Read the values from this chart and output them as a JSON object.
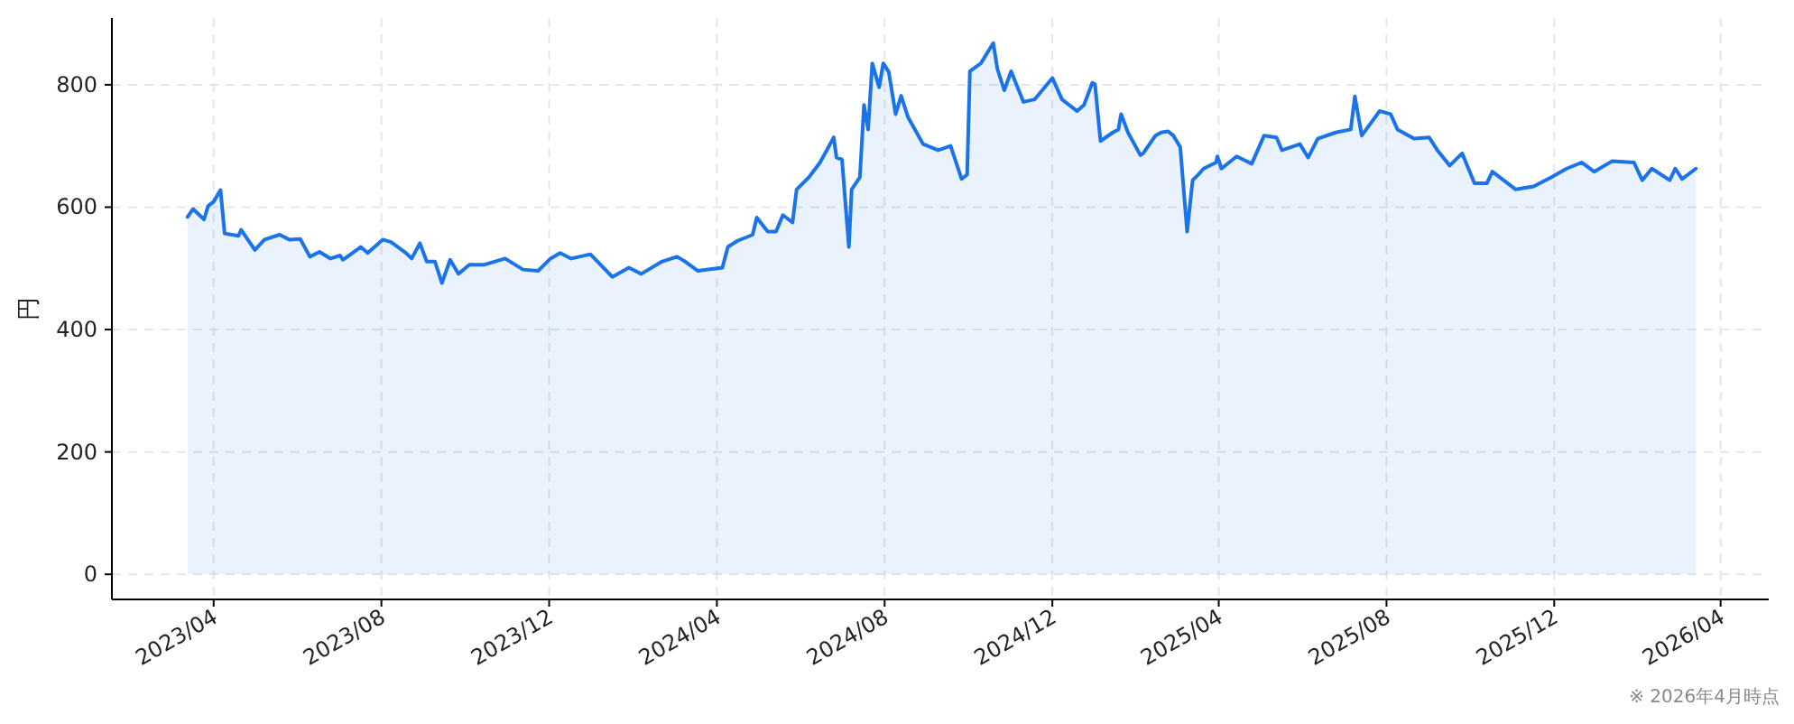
{
  "chart_data": {
    "type": "area",
    "ylabel": "円",
    "annotations": [
      "※ 2026年4月時点"
    ],
    "x": [
      "2023-03-13",
      "2023-03-17",
      "2023-03-25",
      "2023-03-28",
      "2023-04-01",
      "2023-04-06",
      "2023-04-09",
      "2023-04-19",
      "2023-04-21",
      "2023-05-01",
      "2023-05-08",
      "2023-05-19",
      "2023-05-26",
      "2023-06-03",
      "2023-06-10",
      "2023-06-17",
      "2023-06-25",
      "2023-07-02",
      "2023-07-04",
      "2023-07-17",
      "2023-07-22",
      "2023-08-02",
      "2023-08-08",
      "2023-08-19",
      "2023-08-23",
      "2023-08-29",
      "2023-09-03",
      "2023-09-09",
      "2023-09-14",
      "2023-09-20",
      "2023-09-26",
      "2023-10-04",
      "2023-10-15",
      "2023-10-30",
      "2023-11-12",
      "2023-11-23",
      "2023-12-02",
      "2023-12-09",
      "2023-12-17",
      "2023-12-31",
      "2024-01-16",
      "2024-01-28",
      "2024-02-06",
      "2024-02-21",
      "2024-03-03",
      "2024-03-09",
      "2024-03-18",
      "2024-04-05",
      "2024-04-09",
      "2024-04-16",
      "2024-04-27",
      "2024-04-30",
      "2024-05-08",
      "2024-05-14",
      "2024-05-19",
      "2024-05-26",
      "2024-05-29",
      "2024-06-07",
      "2024-06-15",
      "2024-06-18",
      "2024-06-25",
      "2024-06-27",
      "2024-07-01",
      "2024-07-06",
      "2024-07-08",
      "2024-07-14",
      "2024-07-17",
      "2024-07-20",
      "2024-07-23",
      "2024-07-28",
      "2024-07-31",
      "2024-08-04",
      "2024-08-09",
      "2024-08-13",
      "2024-08-18",
      "2024-08-29",
      "2024-09-09",
      "2024-09-18",
      "2024-09-26",
      "2024-09-30",
      "2024-10-02",
      "2024-10-10",
      "2024-10-19",
      "2024-10-22",
      "2024-10-27",
      "2024-11-01",
      "2024-11-10",
      "2024-11-18",
      "2024-12-01",
      "2024-12-08",
      "2024-12-19",
      "2024-12-24",
      "2024-12-30",
      "2025-01-01",
      "2025-01-05",
      "2025-01-14",
      "2025-01-18",
      "2025-01-20",
      "2025-01-25",
      "2025-02-03",
      "2025-02-05",
      "2025-02-14",
      "2025-02-18",
      "2025-02-23",
      "2025-02-27",
      "2025-03-04",
      "2025-03-09",
      "2025-03-13",
      "2025-03-17",
      "2025-03-21",
      "2025-03-30",
      "2025-03-31",
      "2025-04-03",
      "2025-04-14",
      "2025-04-25",
      "2025-05-04",
      "2025-05-13",
      "2025-05-17",
      "2025-05-30",
      "2025-06-05",
      "2025-06-12",
      "2025-06-25",
      "2025-07-06",
      "2025-07-09",
      "2025-07-14",
      "2025-07-27",
      "2025-08-04",
      "2025-08-09",
      "2025-08-21",
      "2025-09-01",
      "2025-09-07",
      "2025-09-16",
      "2025-09-25",
      "2025-10-04",
      "2025-10-13",
      "2025-10-17",
      "2025-11-03",
      "2025-11-16",
      "2025-11-29",
      "2025-12-10",
      "2025-12-21",
      "2025-12-30",
      "2026-01-12",
      "2026-01-28",
      "2026-02-03",
      "2026-02-10",
      "2026-02-23",
      "2026-02-27",
      "2026-03-04",
      "2026-03-14"
    ],
    "series": [
      {
        "color": "#1a73e8",
        "values": [
          584,
          597,
          580,
          602,
          609,
          628,
          557,
          553,
          563,
          530,
          547,
          555,
          547,
          548,
          519,
          527,
          516,
          521,
          514,
          535,
          525,
          547,
          543,
          525,
          516,
          541,
          511,
          511,
          476,
          514,
          491,
          506,
          506,
          516,
          498,
          496,
          516,
          525,
          516,
          523,
          486,
          501,
          491,
          511,
          519,
          511,
          496,
          501,
          535,
          545,
          555,
          583,
          560,
          560,
          587,
          575,
          629,
          649,
          673,
          685,
          714,
          681,
          678,
          535,
          629,
          649,
          767,
          727,
          835,
          796,
          835,
          821,
          752,
          782,
          747,
          703,
          693,
          700,
          646,
          653,
          822,
          835,
          868,
          826,
          791,
          822,
          772,
          776,
          811,
          776,
          757,
          767,
          803,
          801,
          708,
          722,
          727,
          752,
          722,
          685,
          688,
          717,
          722,
          724,
          717,
          698,
          560,
          644,
          653,
          663,
          673,
          683,
          663,
          683,
          671,
          717,
          714,
          693,
          703,
          681,
          712,
          722,
          727,
          781,
          717,
          757,
          752,
          727,
          712,
          714,
          693,
          668,
          688,
          639,
          639,
          658,
          629,
          634,
          649,
          663,
          673,
          658,
          675,
          673,
          644,
          663,
          644,
          663,
          646,
          663
        ]
      }
    ],
    "xlim": [
      "2023-01-17",
      "2026-05-06"
    ],
    "ylim": [
      -41,
      909
    ],
    "xticks": [
      {
        "value": "2023-04-01",
        "label": "2023/04"
      },
      {
        "value": "2023-08-01",
        "label": "2023/08"
      },
      {
        "value": "2023-12-01",
        "label": "2023/12"
      },
      {
        "value": "2024-04-01",
        "label": "2024/04"
      },
      {
        "value": "2024-08-01",
        "label": "2024/08"
      },
      {
        "value": "2024-12-01",
        "label": "2024/12"
      },
      {
        "value": "2025-04-01",
        "label": "2025/04"
      },
      {
        "value": "2025-08-01",
        "label": "2025/08"
      },
      {
        "value": "2025-12-01",
        "label": "2025/12"
      },
      {
        "value": "2026-04-01",
        "label": "2026/04"
      }
    ],
    "yticks": [
      0,
      200,
      400,
      600,
      800
    ],
    "grid": true
  }
}
